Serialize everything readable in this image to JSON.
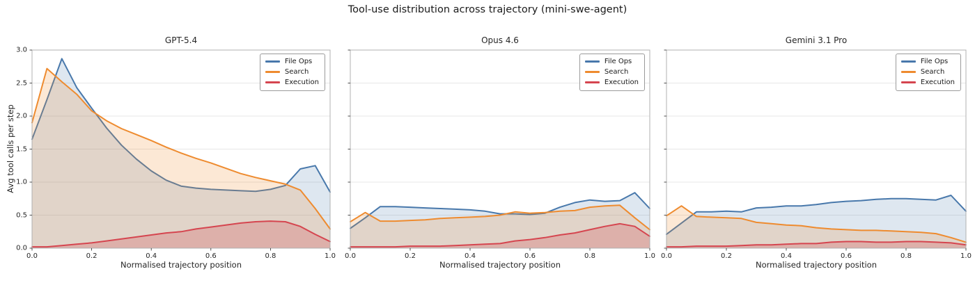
{
  "figure": {
    "title": "Tool-use distribution across trajectory (mini-swe-agent)",
    "background": "#ffffff"
  },
  "axes": {
    "x_label": "Normalised trajectory position",
    "y_label": "Avg tool calls per step",
    "x_ticks": [
      "0.0",
      "0.2",
      "0.4",
      "0.6",
      "0.8",
      "1.0"
    ],
    "y_ticks": [
      "0.0",
      "0.5",
      "1.0",
      "1.5",
      "2.0",
      "2.5",
      "3.0"
    ],
    "x_range": [
      0,
      1
    ],
    "y_range": [
      0,
      3
    ],
    "grid": "horizontal",
    "grid_color": "#e7e7e7",
    "spine_color": "#b0b0b0",
    "tick_color": "#262626"
  },
  "legend": {
    "position": "upper-right",
    "labels": [
      "File Ops",
      "Search",
      "Execution"
    ]
  },
  "colors": {
    "file_ops": "#4878ab",
    "search": "#ee8b2f",
    "execution": "#d5454f"
  },
  "chart_data": [
    {
      "type": "area",
      "title": "GPT-5.4",
      "xlabel": "Normalised trajectory position",
      "ylabel": "Avg tool calls per step",
      "ylim": [
        0,
        3
      ],
      "xlim": [
        0,
        1
      ],
      "x": [
        0,
        0.05,
        0.1,
        0.15,
        0.2,
        0.25,
        0.3,
        0.35,
        0.4,
        0.45,
        0.5,
        0.55,
        0.6,
        0.65,
        0.7,
        0.75,
        0.8,
        0.85,
        0.9,
        0.95,
        1.0
      ],
      "series": [
        {
          "name": "File Ops",
          "color": "#4878ab",
          "fill_opacity": 0.18,
          "values": [
            1.65,
            2.25,
            2.87,
            2.43,
            2.12,
            1.82,
            1.56,
            1.35,
            1.17,
            1.03,
            0.94,
            0.91,
            0.89,
            0.88,
            0.87,
            0.86,
            0.89,
            0.95,
            1.2,
            1.25,
            0.85
          ]
        },
        {
          "name": "Search",
          "color": "#ee8b2f",
          "fill_opacity": 0.2,
          "values": [
            1.9,
            2.72,
            2.52,
            2.33,
            2.08,
            1.93,
            1.81,
            1.72,
            1.63,
            1.53,
            1.44,
            1.36,
            1.29,
            1.21,
            1.13,
            1.07,
            1.02,
            0.97,
            0.88,
            0.6,
            0.29
          ]
        },
        {
          "name": "Execution",
          "color": "#d5454f",
          "fill_opacity": 0.25,
          "values": [
            0.02,
            0.02,
            0.04,
            0.06,
            0.08,
            0.11,
            0.14,
            0.17,
            0.2,
            0.23,
            0.25,
            0.29,
            0.32,
            0.35,
            0.38,
            0.4,
            0.41,
            0.4,
            0.33,
            0.21,
            0.1
          ]
        }
      ]
    },
    {
      "type": "area",
      "title": "Opus 4.6",
      "xlabel": "Normalised trajectory position",
      "ylim": [
        0,
        3
      ],
      "xlim": [
        0,
        1
      ],
      "x": [
        0,
        0.05,
        0.1,
        0.15,
        0.2,
        0.25,
        0.3,
        0.35,
        0.4,
        0.45,
        0.5,
        0.55,
        0.6,
        0.65,
        0.7,
        0.75,
        0.8,
        0.85,
        0.9,
        0.95,
        1.0
      ],
      "series": [
        {
          "name": "File Ops",
          "color": "#4878ab",
          "fill_opacity": 0.18,
          "values": [
            0.3,
            0.46,
            0.63,
            0.63,
            0.62,
            0.61,
            0.6,
            0.59,
            0.58,
            0.56,
            0.52,
            0.52,
            0.51,
            0.53,
            0.62,
            0.69,
            0.73,
            0.71,
            0.72,
            0.84,
            0.6
          ]
        },
        {
          "name": "Search",
          "color": "#ee8b2f",
          "fill_opacity": 0.2,
          "values": [
            0.4,
            0.54,
            0.41,
            0.41,
            0.42,
            0.43,
            0.45,
            0.46,
            0.47,
            0.48,
            0.5,
            0.55,
            0.53,
            0.54,
            0.56,
            0.57,
            0.62,
            0.64,
            0.65,
            0.46,
            0.28
          ]
        },
        {
          "name": "Execution",
          "color": "#d5454f",
          "fill_opacity": 0.25,
          "values": [
            0.02,
            0.02,
            0.02,
            0.02,
            0.03,
            0.03,
            0.03,
            0.04,
            0.05,
            0.06,
            0.07,
            0.11,
            0.13,
            0.16,
            0.2,
            0.23,
            0.28,
            0.33,
            0.37,
            0.33,
            0.18
          ]
        }
      ]
    },
    {
      "type": "area",
      "title": "Gemini 3.1 Pro",
      "xlabel": "Normalised trajectory position",
      "ylim": [
        0,
        3
      ],
      "xlim": [
        0,
        1
      ],
      "x": [
        0,
        0.05,
        0.1,
        0.15,
        0.2,
        0.25,
        0.3,
        0.35,
        0.4,
        0.45,
        0.5,
        0.55,
        0.6,
        0.65,
        0.7,
        0.75,
        0.8,
        0.85,
        0.9,
        0.95,
        1.0
      ],
      "series": [
        {
          "name": "File Ops",
          "color": "#4878ab",
          "fill_opacity": 0.18,
          "values": [
            0.21,
            0.38,
            0.55,
            0.55,
            0.56,
            0.55,
            0.61,
            0.62,
            0.64,
            0.64,
            0.66,
            0.69,
            0.71,
            0.72,
            0.74,
            0.75,
            0.75,
            0.74,
            0.73,
            0.8,
            0.56
          ]
        },
        {
          "name": "Search",
          "color": "#ee8b2f",
          "fill_opacity": 0.2,
          "values": [
            0.49,
            0.64,
            0.48,
            0.47,
            0.46,
            0.45,
            0.39,
            0.37,
            0.35,
            0.34,
            0.31,
            0.29,
            0.28,
            0.27,
            0.27,
            0.26,
            0.25,
            0.24,
            0.22,
            0.16,
            0.09
          ]
        },
        {
          "name": "Execution",
          "color": "#d5454f",
          "fill_opacity": 0.25,
          "values": [
            0.02,
            0.02,
            0.03,
            0.03,
            0.03,
            0.04,
            0.05,
            0.05,
            0.06,
            0.07,
            0.07,
            0.09,
            0.1,
            0.1,
            0.09,
            0.09,
            0.1,
            0.1,
            0.09,
            0.08,
            0.05
          ]
        }
      ]
    }
  ]
}
